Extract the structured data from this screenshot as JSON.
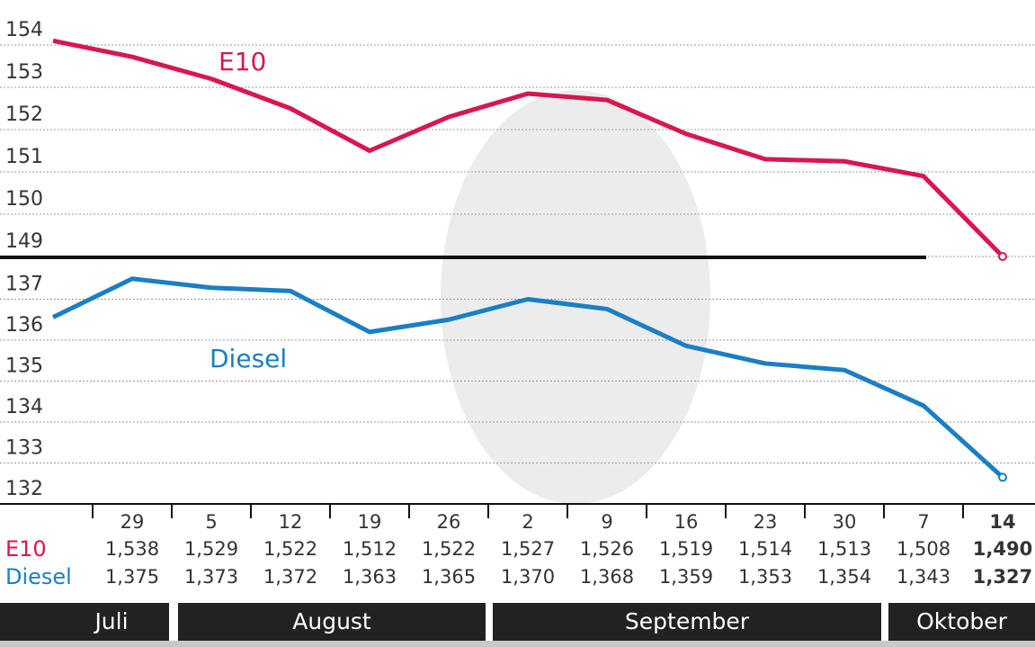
{
  "chart_data": {
    "type": "line",
    "categories": [
      null,
      "29",
      "5",
      "12",
      "19",
      "26",
      "2",
      "9",
      "16",
      "23",
      "30",
      "7",
      "14"
    ],
    "series": [
      {
        "name": "E10",
        "color": "#d8174f",
        "axis": "y",
        "values": [
          154.1,
          153.72,
          153.2,
          152.5,
          151.5,
          152.3,
          152.85,
          152.7,
          151.9,
          151.3,
          151.25,
          150.9,
          149.0
        ]
      },
      {
        "name": "Diesel",
        "color": "#1a7fc4",
        "axis": "y2",
        "values": [
          136.56,
          137.5,
          137.28,
          137.2,
          136.2,
          136.5,
          137.0,
          136.76,
          135.86,
          135.43,
          135.27,
          134.4,
          132.65
        ]
      }
    ],
    "ylim": [
      149,
      155
    ],
    "yticks": [
      149,
      150,
      151,
      152,
      153,
      154
    ],
    "y2lim": [
      132,
      138
    ],
    "y2ticks": [
      132,
      133,
      134,
      135,
      136,
      137
    ],
    "grid": true,
    "table": {
      "rows": [
        [
          "1,538",
          "1,529",
          "1,522",
          "1,512",
          "1,522",
          "1,527",
          "1,526",
          "1,519",
          "1,514",
          "1,513",
          "1,508",
          "1,490"
        ],
        [
          "1,375",
          "1,373",
          "1,372",
          "1,363",
          "1,365",
          "1,370",
          "1,368",
          "1,359",
          "1,353",
          "1,354",
          "1,343",
          "1,327"
        ]
      ]
    },
    "months": [
      "Juli",
      "August",
      "September",
      "Oktober"
    ]
  }
}
